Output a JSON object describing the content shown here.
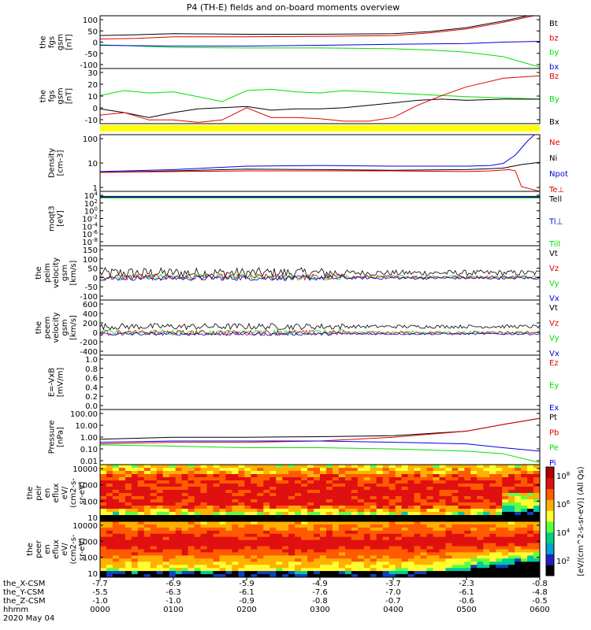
{
  "title": "P4 (TH-E) fields and on-board moments overview",
  "colors": {
    "black": "#000000",
    "red": "#e00000",
    "green": "#00e000",
    "blue": "#0000e0",
    "yellow": "#ffff00"
  },
  "chart_data": [
    {
      "type": "line",
      "id": "fgs-gsm-1",
      "ylabel": [
        "the",
        "fgs",
        "gsm",
        "[nT]"
      ],
      "ylim": [
        -100,
        100
      ],
      "yticks": [
        "100",
        "50",
        "0",
        "-50",
        "-100"
      ],
      "legend": [
        {
          "name": "Bt",
          "color": "#000000"
        },
        {
          "name": "bz",
          "color": "#e00000"
        },
        {
          "name": "by",
          "color": "#00e000"
        },
        {
          "name": "bx",
          "color": "#0000e0"
        }
      ],
      "series": [
        {
          "name": "Bt",
          "color": "#000000",
          "x": [
            0,
            30,
            60,
            120,
            180,
            240,
            270,
            300,
            330,
            345,
            360
          ],
          "y": [
            25,
            28,
            32,
            30,
            30,
            32,
            40,
            55,
            80,
            95,
            110
          ]
        },
        {
          "name": "bz",
          "color": "#e00000",
          "x": [
            0,
            30,
            60,
            120,
            180,
            240,
            270,
            300,
            330,
            345,
            360
          ],
          "y": [
            12,
            14,
            20,
            20,
            22,
            25,
            35,
            50,
            75,
            90,
            105
          ]
        },
        {
          "name": "by",
          "color": "#00e000",
          "x": [
            0,
            30,
            60,
            120,
            180,
            240,
            270,
            300,
            330,
            345,
            360
          ],
          "y": [
            -10,
            -15,
            -20,
            -22,
            -22,
            -25,
            -30,
            -38,
            -55,
            -75,
            -95
          ]
        },
        {
          "name": "bx",
          "color": "#0000e0",
          "x": [
            0,
            60,
            120,
            180,
            240,
            300,
            330,
            360
          ],
          "y": [
            -12,
            -15,
            -15,
            -12,
            -8,
            -5,
            0,
            3
          ]
        }
      ]
    },
    {
      "type": "line",
      "id": "fgs-gsm-2",
      "ylabel": [
        "the",
        "fgs",
        "gsm",
        "[nT]"
      ],
      "ylim": [
        -15,
        30
      ],
      "yticks": [
        "30",
        "20",
        "10",
        "0",
        "-10"
      ],
      "legend": [
        {
          "name": "Bz",
          "color": "#e00000"
        },
        {
          "name": "By",
          "color": "#00e000"
        },
        {
          "name": "Bx",
          "color": "#000000"
        }
      ],
      "series": [
        {
          "name": "By",
          "color": "#00e000",
          "x": [
            0,
            20,
            40,
            60,
            80,
            100,
            120,
            140,
            160,
            180,
            200,
            220,
            240,
            260,
            280,
            300,
            330,
            360
          ],
          "y": [
            8,
            12,
            10,
            11,
            7,
            3,
            12,
            13,
            11,
            10,
            12,
            11,
            10,
            9,
            8,
            7,
            6,
            5
          ]
        },
        {
          "name": "Bx",
          "color": "#000000",
          "x": [
            0,
            20,
            40,
            60,
            80,
            100,
            120,
            140,
            160,
            180,
            200,
            220,
            240,
            260,
            280,
            300,
            330,
            360
          ],
          "y": [
            -3,
            -6,
            -10,
            -6,
            -3,
            -2,
            -1,
            -4,
            -3,
            -3,
            -2,
            0,
            2,
            4,
            5,
            4,
            5,
            5
          ]
        },
        {
          "name": "Bz",
          "color": "#e00000",
          "x": [
            0,
            20,
            40,
            60,
            80,
            100,
            120,
            140,
            160,
            180,
            200,
            220,
            240,
            260,
            280,
            300,
            330,
            360
          ],
          "y": [
            -8,
            -6,
            -12,
            -12,
            -14,
            -12,
            -2,
            -10,
            -10,
            -11,
            -13,
            -13,
            -10,
            0,
            8,
            15,
            22,
            24
          ]
        }
      ]
    },
    {
      "type": "line",
      "id": "density",
      "ylabel": [
        "Density",
        "[cm-3]"
      ],
      "ylim": [
        0.05,
        200
      ],
      "log": true,
      "yticks": [
        "100",
        "10",
        "1"
      ],
      "legend": [
        {
          "name": "Ne",
          "color": "#e00000"
        },
        {
          "name": "Ni",
          "color": "#000000"
        },
        {
          "name": "Npot",
          "color": "#0000e0"
        },
        {
          "name": "Te⊥",
          "color": "#e00000"
        }
      ],
      "series": [
        {
          "name": "Npot",
          "color": "#0000e0",
          "x": [
            0,
            60,
            120,
            180,
            240,
            300,
            320,
            330,
            340,
            350,
            360
          ],
          "y": [
            0.9,
            1.2,
            2.0,
            2.2,
            2.0,
            2.0,
            2.2,
            3,
            10,
            80,
            400
          ]
        },
        {
          "name": "Ni",
          "color": "#000000",
          "x": [
            0,
            60,
            120,
            180,
            240,
            300,
            330,
            345,
            360
          ],
          "y": [
            0.8,
            1.0,
            1.3,
            1.2,
            1.1,
            1.2,
            1.5,
            2.5,
            3.5
          ]
        },
        {
          "name": "Ne",
          "color": "#e00000",
          "x": [
            0,
            60,
            120,
            180,
            240,
            300,
            320,
            335,
            340,
            345,
            360
          ],
          "y": [
            0.8,
            0.9,
            1.0,
            1.0,
            1.0,
            0.9,
            1.0,
            1.2,
            1.0,
            0.1,
            0.05
          ]
        }
      ]
    },
    {
      "type": "line",
      "id": "moqt3",
      "ylabel": [
        "moqt3",
        "[eV]"
      ],
      "ylim": [
        1e-09,
        100000
      ],
      "log": true,
      "yticks": [
        "10^4",
        "10^2",
        "10^0",
        "10^-2",
        "10^-4",
        "10^-6",
        "10^-8"
      ],
      "legend": [
        {
          "name": "Tell",
          "color": "#000000"
        },
        {
          "name": "Ti⊥",
          "color": "#0000e0"
        },
        {
          "name": "Till",
          "color": "#00e000"
        }
      ],
      "series": [
        {
          "name": "Tell",
          "color": "#000000",
          "x": [
            0,
            360
          ],
          "y": [
            5000,
            5000
          ]
        },
        {
          "name": "Ti⊥",
          "color": "#0000e0",
          "x": [
            0,
            360
          ],
          "y": [
            3000,
            3000
          ]
        },
        {
          "name": "Till",
          "color": "#00e000",
          "x": [
            0,
            360
          ],
          "y": [
            2000,
            2000
          ]
        }
      ]
    },
    {
      "type": "line",
      "id": "peim",
      "ylabel": [
        "the",
        "peim",
        "velocity",
        "gsm",
        "[km/s]"
      ],
      "ylim": [
        -110,
        150
      ],
      "yticks": [
        "150",
        "100",
        "50",
        "0",
        "-50",
        "-100"
      ],
      "legend": [
        {
          "name": "Vt",
          "color": "#000000"
        },
        {
          "name": "Vz",
          "color": "#e00000"
        },
        {
          "name": "Vy",
          "color": "#00e000"
        },
        {
          "name": "Vx",
          "color": "#0000e0"
        }
      ],
      "noisy": [
        {
          "color": "#000000",
          "base": 20,
          "amp": 25
        },
        {
          "color": "#00e000",
          "base": 0,
          "amp": 15
        },
        {
          "color": "#e00000",
          "base": 0,
          "amp": 15
        },
        {
          "color": "#0000e0",
          "base": -5,
          "amp": 12
        }
      ]
    },
    {
      "type": "line",
      "id": "peem",
      "ylabel": [
        "the",
        "peem",
        "velocity",
        "gsm",
        "[km/s]"
      ],
      "ylim": [
        -420,
        620
      ],
      "yticks": [
        "600",
        "400",
        "200",
        "0",
        "-200",
        "-400"
      ],
      "legend": [
        {
          "name": "Vt",
          "color": "#000000"
        },
        {
          "name": "Vz",
          "color": "#e00000"
        },
        {
          "name": "Vy",
          "color": "#00e000"
        },
        {
          "name": "Vx",
          "color": "#0000e0"
        }
      ],
      "noisy": [
        {
          "color": "#000000",
          "base": 120,
          "amp": 60
        },
        {
          "color": "#00e000",
          "base": 10,
          "amp": 50
        },
        {
          "color": "#e00000",
          "base": 0,
          "amp": 50
        },
        {
          "color": "#0000e0",
          "base": -20,
          "amp": 30
        }
      ]
    },
    {
      "type": "line",
      "id": "efield",
      "ylabel": [
        "E=-VxB",
        "[mV/m]"
      ],
      "ylim": [
        0,
        1.0
      ],
      "yticks": [
        "1.0",
        "0.8",
        "0.6",
        "0.4",
        "0.2",
        "0.0"
      ],
      "legend": [
        {
          "name": "Ez",
          "color": "#e00000"
        },
        {
          "name": "Ey",
          "color": "#00e000"
        },
        {
          "name": "Ex",
          "color": "#0000e0"
        }
      ],
      "series": []
    },
    {
      "type": "line",
      "id": "pressure",
      "ylabel": [
        "Pressure",
        "[nPa]"
      ],
      "ylim": [
        0.007,
        150
      ],
      "log": true,
      "yticks": [
        "100.00",
        "10.00",
        "1.00",
        "0.10",
        "0.01"
      ],
      "legend": [
        {
          "name": "Pt",
          "color": "#000000"
        },
        {
          "name": "Pb",
          "color": "#e00000"
        },
        {
          "name": "Pe",
          "color": "#00e000"
        },
        {
          "name": "Pi",
          "color": "#0000e0"
        }
      ],
      "series": [
        {
          "name": "Pt",
          "color": "#000000",
          "x": [
            0,
            60,
            120,
            180,
            240,
            300,
            330,
            360
          ],
          "y": [
            0.7,
            1.0,
            1.0,
            1.1,
            1.3,
            3,
            10,
            30
          ]
        },
        {
          "name": "Pb",
          "color": "#e00000",
          "x": [
            0,
            60,
            120,
            180,
            240,
            300,
            330,
            360
          ],
          "y": [
            0.3,
            0.4,
            0.4,
            0.5,
            1.0,
            3,
            10,
            30
          ]
        },
        {
          "name": "Pi",
          "color": "#0000e0",
          "x": [
            0,
            60,
            120,
            180,
            240,
            300,
            330,
            360
          ],
          "y": [
            0.4,
            0.5,
            0.5,
            0.5,
            0.4,
            0.3,
            0.15,
            0.08
          ]
        },
        {
          "name": "Pe",
          "color": "#00e000",
          "x": [
            0,
            60,
            120,
            180,
            240,
            300,
            330,
            360
          ],
          "y": [
            0.25,
            0.2,
            0.15,
            0.15,
            0.12,
            0.08,
            0.05,
            0.01
          ]
        }
      ]
    },
    {
      "type": "heatmap",
      "id": "peir",
      "ylabel": [
        "the",
        "peir",
        "en",
        "eflux",
        "eV/",
        "(cm2-s-",
        "sr-eV)"
      ],
      "ylim": [
        10,
        20000
      ],
      "yticks": [
        "10000",
        "1000",
        "100",
        "10"
      ]
    },
    {
      "type": "heatmap",
      "id": "peer",
      "ylabel": [
        "the",
        "peer",
        "en",
        "eflux",
        "eV/",
        "(cm2-s-",
        "sr-eV)"
      ],
      "ylim": [
        10,
        20000
      ],
      "yticks": [
        "10000",
        "1000",
        "100",
        "10"
      ]
    }
  ],
  "colorbar": {
    "label": "[eV/(cm^2-s-sr-eV)] (All Qs)",
    "ticks": [
      "10^8",
      "10^6",
      "10^4",
      "10^2"
    ]
  },
  "xaxis": {
    "rows": [
      {
        "label": "the_X-CSM",
        "values": [
          "-7.7",
          "-6.9",
          "-5.9",
          "-4.9",
          "-3.7",
          "-2.3",
          "-0.8"
        ]
      },
      {
        "label": "the_Y-CSM",
        "values": [
          "-5.5",
          "-6.3",
          "-6.1",
          "-7.6",
          "-7.0",
          "-6.1",
          "-4.8"
        ]
      },
      {
        "label": "the_Z-CSM",
        "values": [
          "-1.0",
          "-1.0",
          "-0.9",
          "-0.8",
          "-0.7",
          "-0.6",
          "-0.5"
        ]
      },
      {
        "label": "hhmm",
        "values": [
          "0000",
          "0100",
          "0200",
          "0300",
          "0400",
          "0500",
          "0600"
        ]
      }
    ],
    "date": "2020 May 04"
  }
}
